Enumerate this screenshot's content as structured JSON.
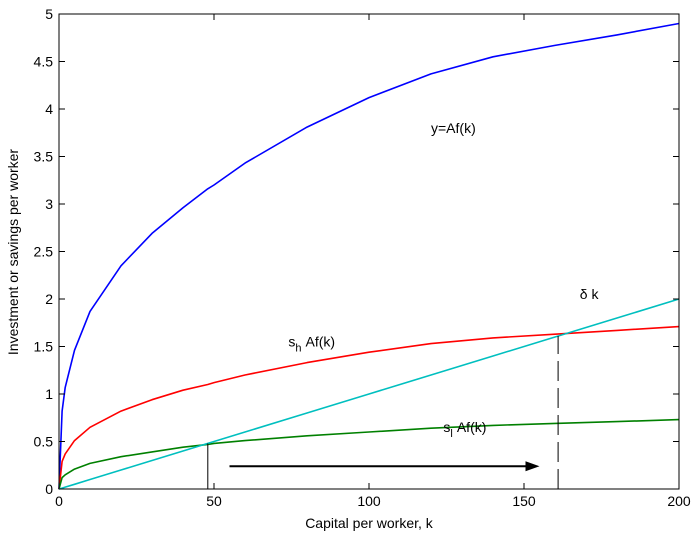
{
  "chart_data": {
    "type": "line",
    "title": "",
    "xlabel": "Capital per worker, k",
    "ylabel": "Investment or savings per worker",
    "xlim": [
      0,
      200
    ],
    "ylim": [
      0,
      5
    ],
    "x_ticks": [
      0,
      50,
      100,
      150,
      200
    ],
    "y_ticks": [
      0,
      0.5,
      1,
      1.5,
      2,
      2.5,
      3,
      3.5,
      4,
      4.5,
      5
    ],
    "x_tick_labels": [
      "0",
      "50",
      "100",
      "150",
      "200"
    ],
    "y_tick_labels": [
      "0",
      "0.5",
      "1",
      "1.5",
      "2",
      "2.5",
      "3",
      "3.5",
      "4",
      "4.5",
      "5"
    ],
    "grid": false,
    "x": [
      0,
      1,
      2,
      5,
      10,
      20,
      30,
      40,
      48,
      50,
      60,
      80,
      100,
      120,
      140,
      160,
      180,
      200
    ],
    "series": [
      {
        "name": "y=Af(k)",
        "color": "#0000ff",
        "values": [
          0,
          0.82,
          1.07,
          1.46,
          1.87,
          2.35,
          2.69,
          2.96,
          3.16,
          3.2,
          3.43,
          3.81,
          4.12,
          4.37,
          4.55,
          4.67,
          4.78,
          4.9
        ]
      },
      {
        "name": "s_h Af(k)",
        "color": "#ff0000",
        "values": [
          0,
          0.29,
          0.37,
          0.51,
          0.65,
          0.82,
          0.94,
          1.04,
          1.1,
          1.12,
          1.2,
          1.33,
          1.44,
          1.53,
          1.59,
          1.63,
          1.67,
          1.71
        ]
      },
      {
        "name": "s_l Af(k)",
        "color": "#008000",
        "values": [
          0,
          0.12,
          0.15,
          0.21,
          0.27,
          0.34,
          0.39,
          0.44,
          0.47,
          0.48,
          0.51,
          0.56,
          0.6,
          0.64,
          0.67,
          0.69,
          0.71,
          0.73
        ]
      },
      {
        "name": "δ k",
        "color": "#00bfbf",
        "values": [
          0,
          0.01,
          0.02,
          0.05,
          0.1,
          0.2,
          0.3,
          0.4,
          0.48,
          0.5,
          0.6,
          0.8,
          1.0,
          1.2,
          1.4,
          1.6,
          1.8,
          2.0
        ]
      }
    ],
    "curve_labels": [
      {
        "text": "y=Af(k)",
        "x": 120,
        "y": 3.75
      },
      {
        "text": "δ k",
        "x": 168,
        "y": 2.0
      },
      {
        "text": "Af(k)",
        "x": 74,
        "y": 1.5,
        "prefix": "s",
        "subscript": "h"
      },
      {
        "text": "Af(k)",
        "x": 124,
        "y": 0.6,
        "prefix": "s",
        "subscript": "l"
      }
    ],
    "reference_lines": [
      {
        "x": 48,
        "y_from": 0,
        "y_to": 0.48,
        "style": "solid"
      },
      {
        "x": 161,
        "y_from": 0,
        "y_to": 1.61,
        "style": "dashed"
      }
    ],
    "arrow": {
      "x_from": 55,
      "x_to": 155,
      "y": 0.24
    }
  }
}
